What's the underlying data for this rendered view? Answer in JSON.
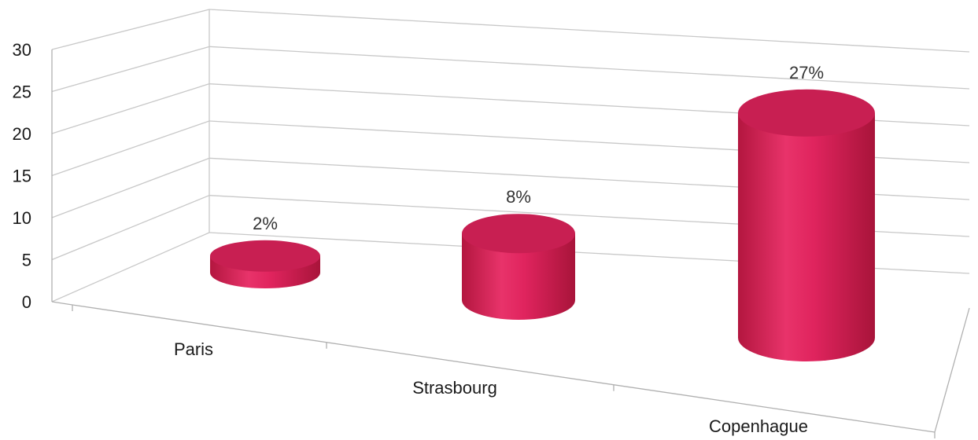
{
  "chart_data": {
    "type": "bar",
    "style": "3d-cylinder",
    "categories": [
      "Paris",
      "Strasbourg",
      "Copenhague"
    ],
    "values": [
      2,
      8,
      27
    ],
    "data_labels": [
      "2%",
      "8%",
      "27%"
    ],
    "yticks": [
      "0",
      "5",
      "10",
      "15",
      "20",
      "25",
      "30"
    ],
    "ylim": [
      0,
      30
    ],
    "grid": true,
    "legend": "none",
    "colors": {
      "bar": "#e0245e",
      "bar_top": "#c81f52",
      "grid": "#c8c8c8"
    }
  }
}
